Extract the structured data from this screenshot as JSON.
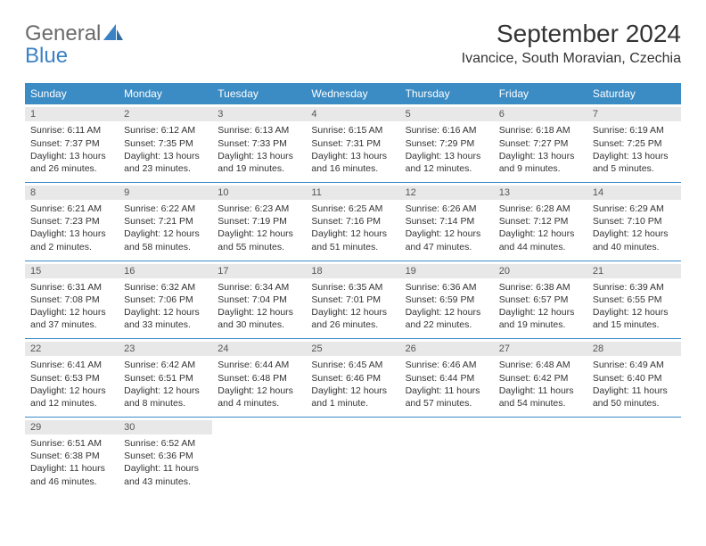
{
  "brand": {
    "line1": "General",
    "line2": "Blue"
  },
  "title": "September 2024",
  "location": "Ivancice, South Moravian, Czechia",
  "colors": {
    "header_bg": "#3b8bc4",
    "header_text": "#ffffff",
    "day_header_bg": "#e8e8e8",
    "row_border": "#3b8bc4",
    "logo_gray": "#6b6b6b",
    "logo_blue": "#3b82c4"
  },
  "dow": [
    "Sunday",
    "Monday",
    "Tuesday",
    "Wednesday",
    "Thursday",
    "Friday",
    "Saturday"
  ],
  "weeks": [
    [
      {
        "n": "1",
        "sr": "6:11 AM",
        "ss": "7:37 PM",
        "dl": "13 hours and 26 minutes."
      },
      {
        "n": "2",
        "sr": "6:12 AM",
        "ss": "7:35 PM",
        "dl": "13 hours and 23 minutes."
      },
      {
        "n": "3",
        "sr": "6:13 AM",
        "ss": "7:33 PM",
        "dl": "13 hours and 19 minutes."
      },
      {
        "n": "4",
        "sr": "6:15 AM",
        "ss": "7:31 PM",
        "dl": "13 hours and 16 minutes."
      },
      {
        "n": "5",
        "sr": "6:16 AM",
        "ss": "7:29 PM",
        "dl": "13 hours and 12 minutes."
      },
      {
        "n": "6",
        "sr": "6:18 AM",
        "ss": "7:27 PM",
        "dl": "13 hours and 9 minutes."
      },
      {
        "n": "7",
        "sr": "6:19 AM",
        "ss": "7:25 PM",
        "dl": "13 hours and 5 minutes."
      }
    ],
    [
      {
        "n": "8",
        "sr": "6:21 AM",
        "ss": "7:23 PM",
        "dl": "13 hours and 2 minutes."
      },
      {
        "n": "9",
        "sr": "6:22 AM",
        "ss": "7:21 PM",
        "dl": "12 hours and 58 minutes."
      },
      {
        "n": "10",
        "sr": "6:23 AM",
        "ss": "7:19 PM",
        "dl": "12 hours and 55 minutes."
      },
      {
        "n": "11",
        "sr": "6:25 AM",
        "ss": "7:16 PM",
        "dl": "12 hours and 51 minutes."
      },
      {
        "n": "12",
        "sr": "6:26 AM",
        "ss": "7:14 PM",
        "dl": "12 hours and 47 minutes."
      },
      {
        "n": "13",
        "sr": "6:28 AM",
        "ss": "7:12 PM",
        "dl": "12 hours and 44 minutes."
      },
      {
        "n": "14",
        "sr": "6:29 AM",
        "ss": "7:10 PM",
        "dl": "12 hours and 40 minutes."
      }
    ],
    [
      {
        "n": "15",
        "sr": "6:31 AM",
        "ss": "7:08 PM",
        "dl": "12 hours and 37 minutes."
      },
      {
        "n": "16",
        "sr": "6:32 AM",
        "ss": "7:06 PM",
        "dl": "12 hours and 33 minutes."
      },
      {
        "n": "17",
        "sr": "6:34 AM",
        "ss": "7:04 PM",
        "dl": "12 hours and 30 minutes."
      },
      {
        "n": "18",
        "sr": "6:35 AM",
        "ss": "7:01 PM",
        "dl": "12 hours and 26 minutes."
      },
      {
        "n": "19",
        "sr": "6:36 AM",
        "ss": "6:59 PM",
        "dl": "12 hours and 22 minutes."
      },
      {
        "n": "20",
        "sr": "6:38 AM",
        "ss": "6:57 PM",
        "dl": "12 hours and 19 minutes."
      },
      {
        "n": "21",
        "sr": "6:39 AM",
        "ss": "6:55 PM",
        "dl": "12 hours and 15 minutes."
      }
    ],
    [
      {
        "n": "22",
        "sr": "6:41 AM",
        "ss": "6:53 PM",
        "dl": "12 hours and 12 minutes."
      },
      {
        "n": "23",
        "sr": "6:42 AM",
        "ss": "6:51 PM",
        "dl": "12 hours and 8 minutes."
      },
      {
        "n": "24",
        "sr": "6:44 AM",
        "ss": "6:48 PM",
        "dl": "12 hours and 4 minutes."
      },
      {
        "n": "25",
        "sr": "6:45 AM",
        "ss": "6:46 PM",
        "dl": "12 hours and 1 minute."
      },
      {
        "n": "26",
        "sr": "6:46 AM",
        "ss": "6:44 PM",
        "dl": "11 hours and 57 minutes."
      },
      {
        "n": "27",
        "sr": "6:48 AM",
        "ss": "6:42 PM",
        "dl": "11 hours and 54 minutes."
      },
      {
        "n": "28",
        "sr": "6:49 AM",
        "ss": "6:40 PM",
        "dl": "11 hours and 50 minutes."
      }
    ],
    [
      {
        "n": "29",
        "sr": "6:51 AM",
        "ss": "6:38 PM",
        "dl": "11 hours and 46 minutes."
      },
      {
        "n": "30",
        "sr": "6:52 AM",
        "ss": "6:36 PM",
        "dl": "11 hours and 43 minutes."
      },
      null,
      null,
      null,
      null,
      null
    ]
  ],
  "labels": {
    "sunrise": "Sunrise:",
    "sunset": "Sunset:",
    "daylight": "Daylight:"
  }
}
